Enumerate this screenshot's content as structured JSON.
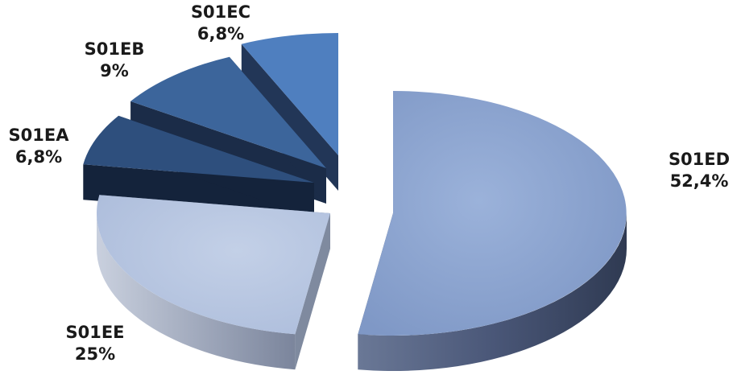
{
  "chart_data": {
    "type": "pie",
    "style": "3d-exploded",
    "legend": "none",
    "slices": [
      {
        "label": "S01ED",
        "value": 52.4,
        "display": "52,4%",
        "color": "#8fa8d3",
        "side_color": "#3a4660"
      },
      {
        "label": "S01EE",
        "value": 25.0,
        "display": "25%",
        "color": "#b9c8e2",
        "side_color": "#7f8a9f"
      },
      {
        "label": "S01EA",
        "value": 6.8,
        "display": "6,8%",
        "color": "#2e4f7d",
        "side_color": "#14233b"
      },
      {
        "label": "S01EB",
        "value": 9.0,
        "display": "9%",
        "color": "#3c659b",
        "side_color": "#1b2c48"
      },
      {
        "label": "S01EC",
        "value": 6.8,
        "display": "6,8%",
        "color": "#4f7fbf",
        "side_color": "#223657"
      }
    ]
  }
}
